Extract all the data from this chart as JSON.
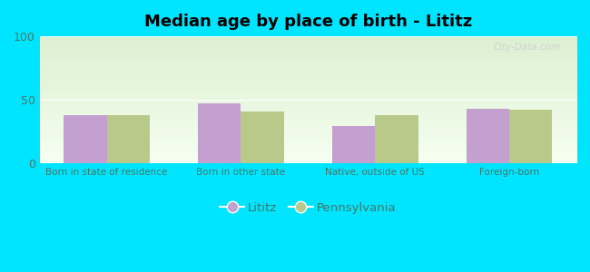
{
  "title": "Median age by place of birth - Lititz",
  "categories": [
    "Born in state of residence",
    "Born in other state",
    "Native, outside of US",
    "Foreign-born"
  ],
  "lititz_values": [
    38,
    47,
    29,
    43
  ],
  "pennsylvania_values": [
    38,
    41,
    38,
    42
  ],
  "lititz_color": "#c4a0d0",
  "pennsylvania_color": "#b8c98a",
  "background_color": "#00e5ff",
  "ylim": [
    0,
    100
  ],
  "yticks": [
    0,
    50,
    100
  ],
  "bar_width": 0.32,
  "title_fontsize": 13,
  "legend_labels": [
    "Lititz",
    "Pennsylvania"
  ],
  "watermark": "City-Data.com",
  "tick_color": "#447766",
  "label_fontsize": 7.5
}
